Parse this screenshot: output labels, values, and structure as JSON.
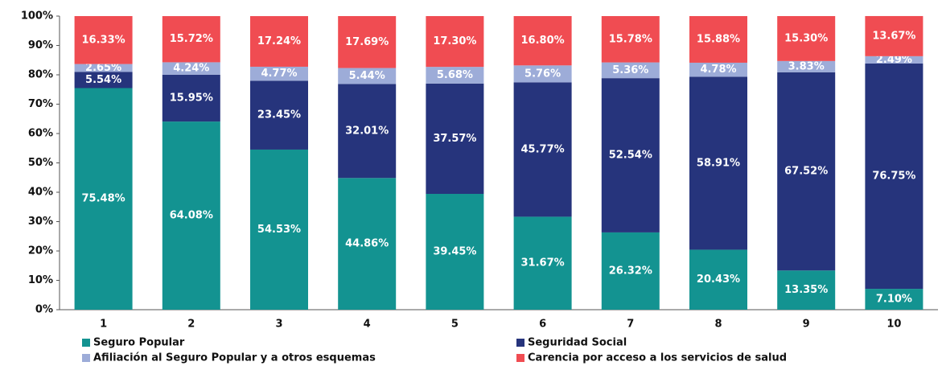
{
  "chart_data": {
    "type": "stacked_bar",
    "categories": [
      "1",
      "2",
      "3",
      "4",
      "5",
      "6",
      "7",
      "8",
      "9",
      "10"
    ],
    "series": [
      {
        "name": "Seguro Popular",
        "color": "#139391",
        "values": [
          75.48,
          64.08,
          54.53,
          44.86,
          39.45,
          31.67,
          26.32,
          20.43,
          13.35,
          7.1
        ],
        "value_labels": [
          "75.48%",
          "64.08%",
          "54.53%",
          "44.86%",
          "39.45%",
          "31.67%",
          "26.32%",
          "20.43%",
          "13.35%",
          "7.10%"
        ]
      },
      {
        "name": "Seguridad Social",
        "color": "#26347c",
        "values": [
          5.54,
          15.95,
          23.45,
          32.01,
          37.57,
          45.77,
          52.54,
          58.91,
          67.52,
          76.75
        ],
        "value_labels": [
          "5.54%",
          "15.95%",
          "23.45%",
          "32.01%",
          "37.57%",
          "45.77%",
          "52.54%",
          "58.91%",
          "67.52%",
          "76.75%"
        ]
      },
      {
        "name": "Afiliación al Seguro Popular y a otros esquemas",
        "color": "#9dacd8",
        "values": [
          2.65,
          4.24,
          4.77,
          5.44,
          5.68,
          5.76,
          5.36,
          4.78,
          3.83,
          2.49
        ],
        "value_labels": [
          "2.65%",
          "4.24%",
          "4.77%",
          "5.44%",
          "5.68%",
          "5.76%",
          "5.36%",
          "4.78%",
          "3.83%",
          "2.49%"
        ]
      },
      {
        "name": "Carencia por acceso a los servicios de salud",
        "color": "#f04c52",
        "values": [
          16.33,
          15.72,
          17.24,
          17.69,
          17.3,
          16.8,
          15.78,
          15.88,
          15.3,
          13.67
        ],
        "value_labels": [
          "16.33%",
          "15.72%",
          "17.24%",
          "17.69%",
          "17.30%",
          "16.80%",
          "15.78%",
          "15.88%",
          "15.30%",
          "13.67%"
        ]
      }
    ],
    "ylim": [
      0,
      100
    ],
    "yticks": [
      {
        "value": 0,
        "label": "0%"
      },
      {
        "value": 10,
        "label": "10%"
      },
      {
        "value": 20,
        "label": "20%"
      },
      {
        "value": 30,
        "label": "30%"
      },
      {
        "value": 40,
        "label": "40%"
      },
      {
        "value": 50,
        "label": "50%"
      },
      {
        "value": 60,
        "label": "60%"
      },
      {
        "value": 70,
        "label": "70%"
      },
      {
        "value": 80,
        "label": "80%"
      },
      {
        "value": 90,
        "label": "90%"
      },
      {
        "value": 100,
        "label": "100%"
      }
    ],
    "grid": false,
    "legend": "bottom"
  }
}
